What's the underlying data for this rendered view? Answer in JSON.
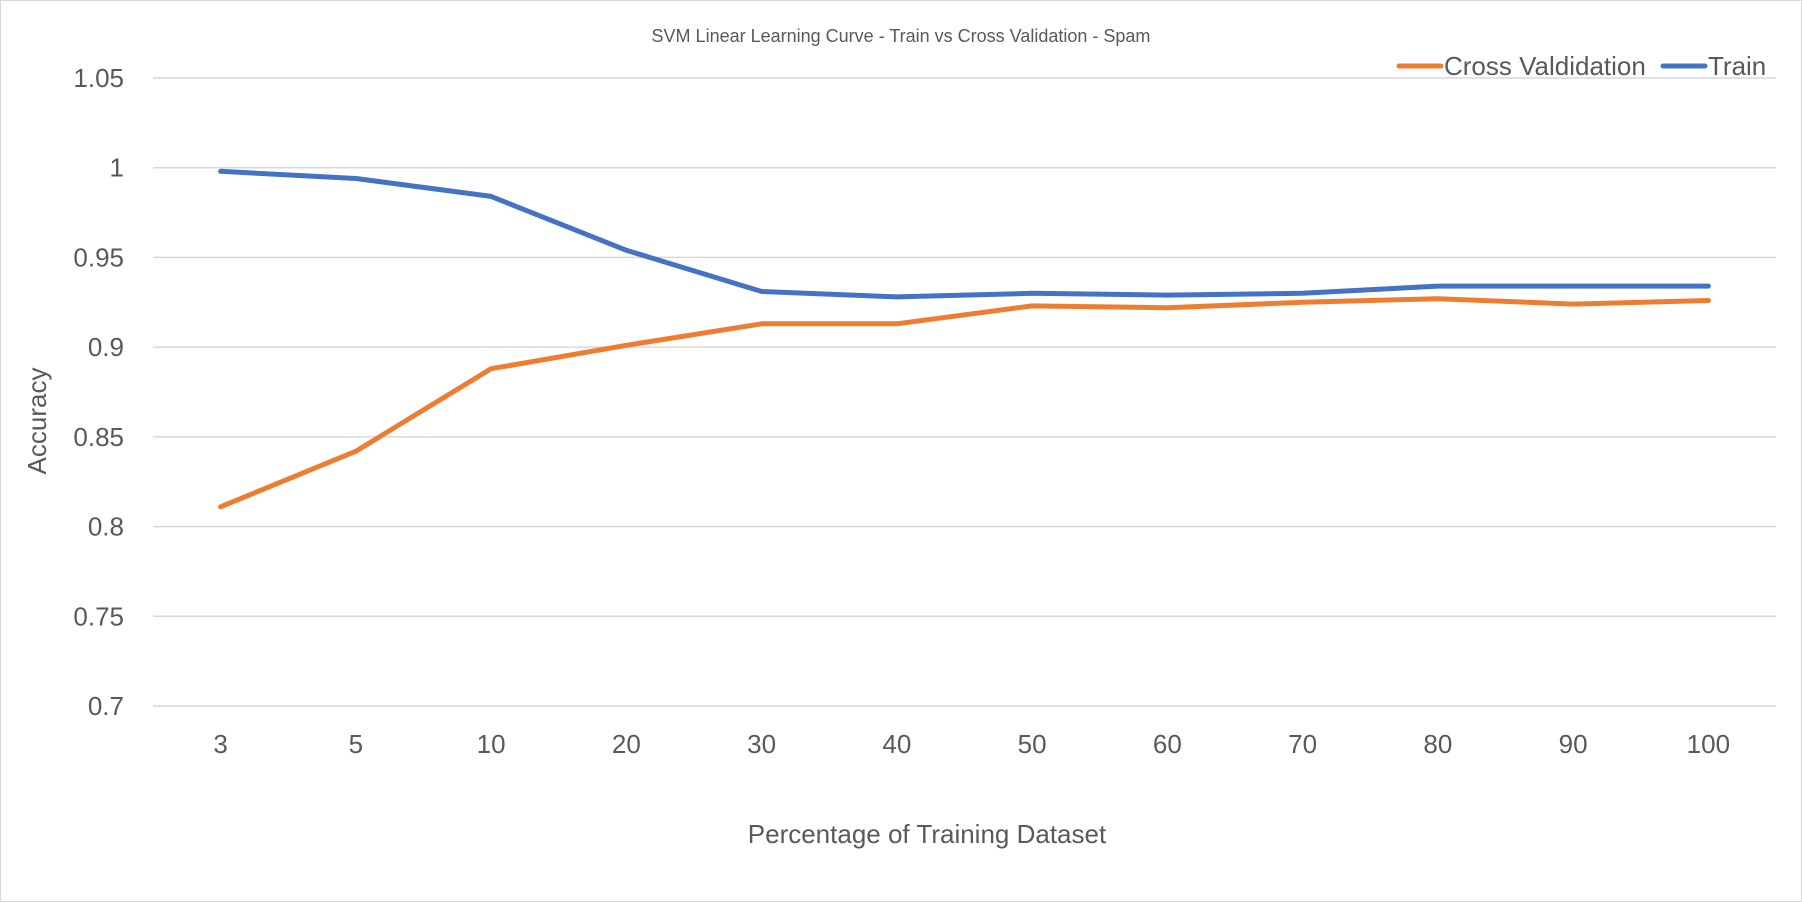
{
  "chart_data": {
    "type": "line",
    "title": "SVM Linear Learning Curve - Train vs Cross Validation - Spam",
    "xlabel": "Percentage of Training Dataset",
    "ylabel": "Accuracy",
    "categories": [
      "3",
      "5",
      "10",
      "20",
      "30",
      "40",
      "50",
      "60",
      "70",
      "80",
      "90",
      "100"
    ],
    "ylim": [
      0.7,
      1.05
    ],
    "yticks": [
      "0.7",
      "0.75",
      "0.8",
      "0.85",
      "0.9",
      "0.95",
      "1",
      "1.05"
    ],
    "grid": true,
    "legend_position": "top-right",
    "series": [
      {
        "name": "Cross Valdidation",
        "color": "#ED7D31",
        "values": [
          0.811,
          0.842,
          0.888,
          0.901,
          0.913,
          0.913,
          0.923,
          0.922,
          0.925,
          0.927,
          0.924,
          0.926
        ]
      },
      {
        "name": "Train",
        "color": "#4472C4",
        "values": [
          0.998,
          0.994,
          0.984,
          0.954,
          0.931,
          0.928,
          0.93,
          0.929,
          0.93,
          0.934,
          0.934,
          0.934
        ]
      }
    ]
  }
}
